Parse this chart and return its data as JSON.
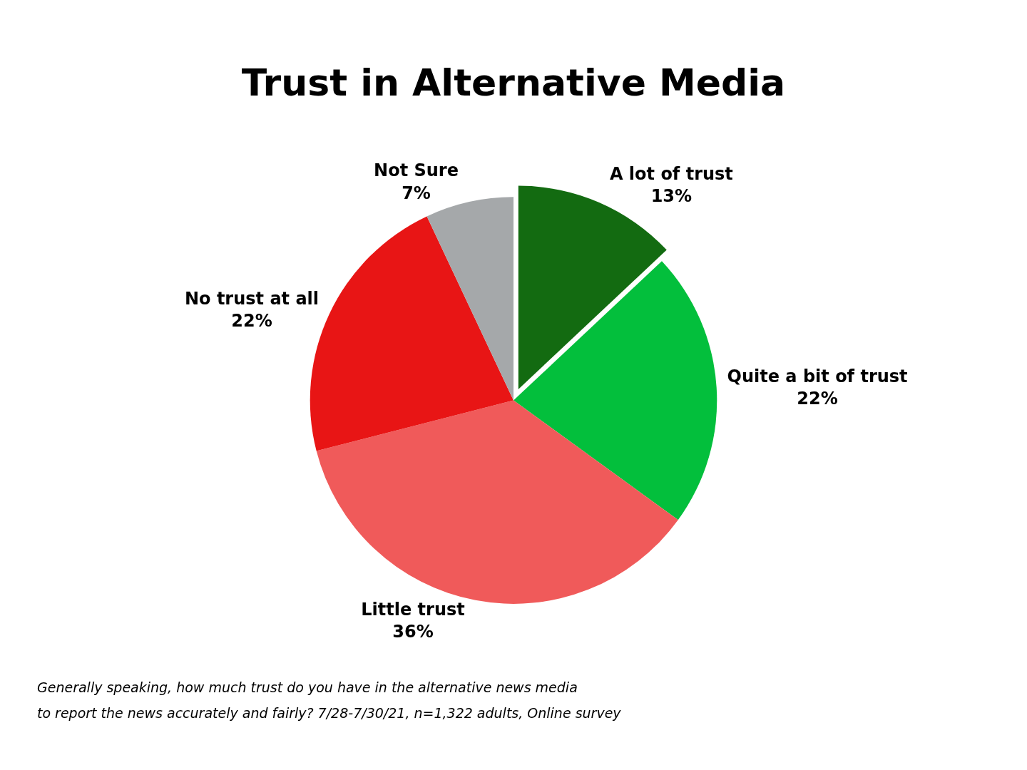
{
  "chart_data": {
    "type": "pie",
    "title": "Trust in Alternative Media",
    "categories": [
      "A lot of trust",
      "Quite a bit of trust",
      "Little trust",
      "No trust at all",
      "Not Sure"
    ],
    "values": [
      13,
      22,
      36,
      22,
      7
    ],
    "value_labels": [
      "13%",
      "22%",
      "36%",
      "22%",
      "7%"
    ],
    "colors": [
      "#136b11",
      "#03bf3c",
      "#f05a5a",
      "#e81515",
      "#a5a8aa"
    ],
    "legend": false,
    "annotations": [
      "Generally speaking, how much trust do you have in the alternative news media",
      "to report the news accurately and fairly? 7/28-7/30/21, n=1,322 adults, Online survey"
    ]
  }
}
